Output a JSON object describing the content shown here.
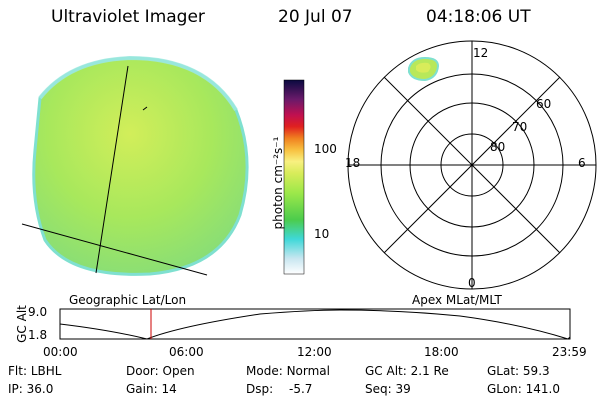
{
  "header": {
    "instrument": "Ultraviolet Imager",
    "date": "20 Jul 07",
    "time": "04:18:06 UT"
  },
  "colorbar": {
    "unit_label": "photon cm⁻²s⁻¹",
    "ticks": [
      "100",
      "10"
    ]
  },
  "polar": {
    "mlt_labels": {
      "top": "12",
      "bottom": "0",
      "left": "18",
      "right": "6"
    },
    "mlat_labels": [
      "60",
      "70",
      "80"
    ]
  },
  "projection_labels": {
    "left": "Geographic Lat/Lon",
    "right": "Apex MLat/MLT"
  },
  "altitude_plot": {
    "ylabel": "GC Alt",
    "yticks": [
      "9.0",
      "1.8"
    ],
    "xticks": [
      "00:00",
      "06:00",
      "12:00",
      "18:00",
      "23:59"
    ],
    "current_time_marker": "04:18"
  },
  "info": {
    "row1": [
      {
        "label": "Flt:",
        "value": "LBHL"
      },
      {
        "label": "Door:",
        "value": "Open"
      },
      {
        "label": "Mode:",
        "value": "Normal"
      },
      {
        "label": "GC Alt:",
        "value": "2.1 Re"
      },
      {
        "label": "GLat:",
        "value": "59.3"
      }
    ],
    "row2": [
      {
        "label": "IP:",
        "value": "36.0"
      },
      {
        "label": "Gain:",
        "value": "14"
      },
      {
        "label": "Dsp:",
        "value": "-5.7"
      },
      {
        "label": "Seq:",
        "value": "39"
      },
      {
        "label": "GLon:",
        "value": "141.0"
      }
    ]
  },
  "colors": {
    "globe_main": "#9ee85a",
    "globe_light": "#c8ec5a",
    "globe_cyan": "#7fe0d0",
    "marker_red": "#cc0000"
  }
}
